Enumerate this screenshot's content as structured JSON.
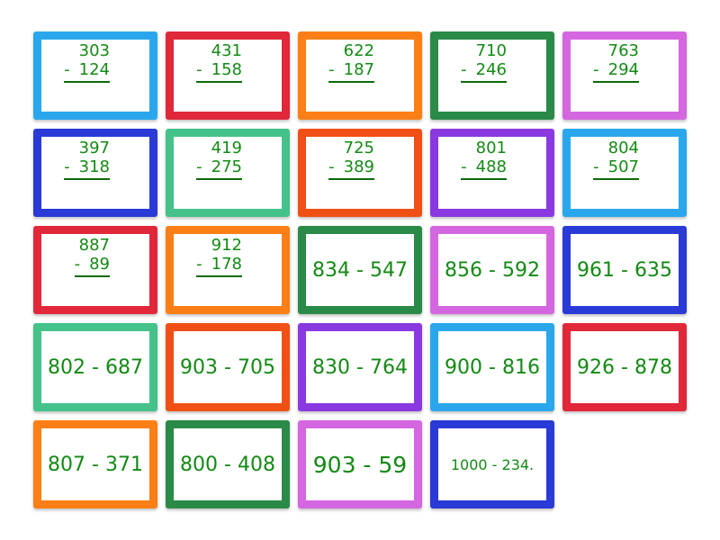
{
  "text_color": "#138a13",
  "cards": [
    {
      "color": "#2aa7ec",
      "top": "303",
      "bottom": "124"
    },
    {
      "color": "#e0283a",
      "top": "431",
      "bottom": "158"
    },
    {
      "color": "#fb7f16",
      "top": "622",
      "bottom": "187"
    },
    {
      "color": "#2a8a48",
      "top": "710",
      "bottom": "246"
    },
    {
      "color": "#d466e0",
      "top": "763",
      "bottom": "294"
    },
    {
      "color": "#2a3ad6",
      "top": "397",
      "bottom": "318"
    },
    {
      "color": "#44c28a",
      "top": "419",
      "bottom": "275"
    },
    {
      "color": "#f05015",
      "top": "725",
      "bottom": "389"
    },
    {
      "color": "#8a38e0",
      "top": "801",
      "bottom": "488"
    },
    {
      "color": "#2aa7ec",
      "top": "804",
      "bottom": "507"
    },
    {
      "color": "#e0283a",
      "top": "887",
      "bottom": "89"
    },
    {
      "color": "#fb7f16",
      "top": "912",
      "bottom": "178"
    },
    {
      "color": "#2a8a48",
      "text": "834 - 547"
    },
    {
      "color": "#d466e0",
      "text": "856 - 592"
    },
    {
      "color": "#2a3ad6",
      "text": "961 - 635"
    },
    {
      "color": "#44c28a",
      "text": "802 - 687"
    },
    {
      "color": "#f05015",
      "text": "903 - 705"
    },
    {
      "color": "#8a38e0",
      "text": "830 - 764"
    },
    {
      "color": "#2aa7ec",
      "text": "900 - 816"
    },
    {
      "color": "#e0283a",
      "text": "926 - 878"
    },
    {
      "color": "#fb7f16",
      "text": "807 - 371"
    },
    {
      "color": "#2a8a48",
      "text": "800 - 408"
    },
    {
      "color": "#d466e0",
      "text": "903 - 59",
      "size": "big"
    },
    {
      "color": "#2a3ad6",
      "text": "1000 - 234.",
      "size": "small"
    }
  ]
}
